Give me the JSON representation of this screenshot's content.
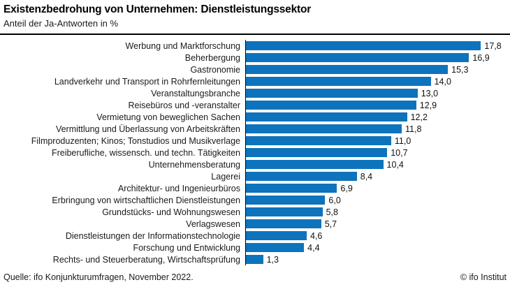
{
  "header": {
    "title": "Existenzbedrohung von Unternehmen: Dienstleistungssektor",
    "subtitle": "Anteil der Ja-Antworten in %"
  },
  "chart_data": {
    "type": "bar",
    "orientation": "horizontal",
    "title": "Existenzbedrohung von Unternehmen: Dienstleistungssektor",
    "subtitle": "Anteil der Ja-Antworten in %",
    "xlabel": "",
    "ylabel": "",
    "xlim": [
      0,
      19.8
    ],
    "grid": false,
    "legend": false,
    "bar_color": "#0d73bd",
    "categories": [
      "Werbung und Marktforschung",
      "Beherbergung",
      "Gastronomie",
      "Landverkehr und Transport in Rohrfernleitungen",
      "Veranstaltungsbranche",
      "Reisebüros und -veranstalter",
      "Vermietung von beweglichen Sachen",
      "Vermittlung und Überlassung von Arbeitskräften",
      "Filmproduzenten; Kinos; Tonstudios und Musikverlage",
      "Freiberufliche, wissensch. und techn. Tätigkeiten",
      "Unternehmensberatung",
      "Lagerei",
      "Architektur- und Ingenieurbüros",
      "Erbringung von wirtschaftlichen Dienstleistungen",
      "Grundstücks- und Wohnungswesen",
      "Verlagswesen",
      "Dienstleistungen der Informationstechnologie",
      "Forschung und Entwicklung",
      "Rechts- und Steuerberatung, Wirtschaftsprüfung"
    ],
    "values": [
      17.8,
      16.9,
      15.3,
      14.0,
      13.0,
      12.9,
      12.2,
      11.8,
      11.0,
      10.7,
      10.4,
      8.4,
      6.9,
      6.0,
      5.8,
      5.7,
      4.6,
      4.4,
      1.3
    ],
    "value_labels": [
      "17,8",
      "16,9",
      "15,3",
      "14,0",
      "13,0",
      "12,9",
      "12,2",
      "11,8",
      "11,0",
      "10,7",
      "10,4",
      "8,4",
      "6,9",
      "6,0",
      "5,8",
      "5,7",
      "4,6",
      "4,4",
      "1,3"
    ]
  },
  "footer": {
    "source": "Quelle: ifo Konjunkturumfragen, November 2022.",
    "copyright": "© ifo Institut"
  },
  "colors": {
    "bar": "#0d73bd",
    "rule": "#000000",
    "text": "#1a1a1a"
  }
}
